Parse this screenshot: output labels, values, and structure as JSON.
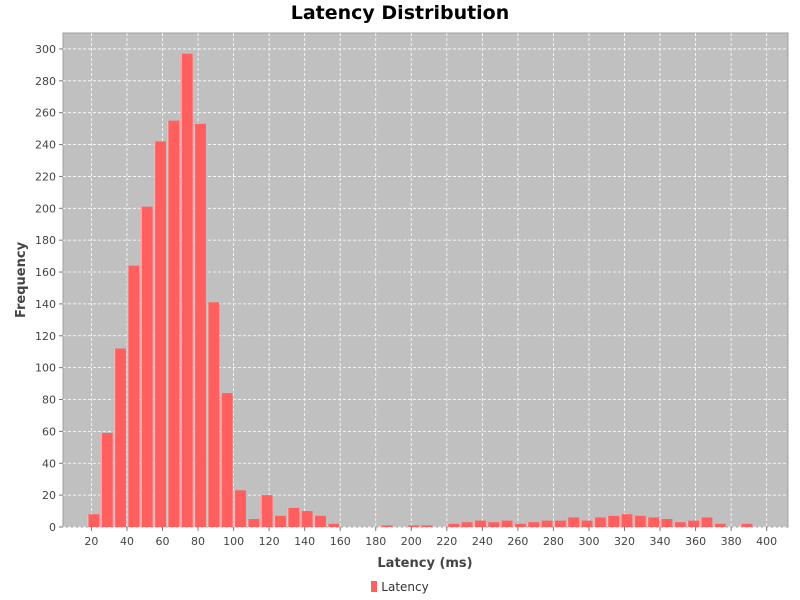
{
  "chart_data": {
    "type": "bar",
    "title": "Latency Distribution",
    "xlabel": "Latency (ms)",
    "ylabel": "Frequency",
    "xlim": [
      4,
      412
    ],
    "ylim": [
      0,
      310
    ],
    "xticks": [
      20,
      40,
      60,
      80,
      100,
      120,
      140,
      160,
      180,
      200,
      220,
      240,
      260,
      280,
      300,
      320,
      340,
      360,
      380,
      400
    ],
    "yticks": [
      0,
      20,
      40,
      60,
      80,
      100,
      120,
      140,
      160,
      180,
      200,
      220,
      240,
      260,
      280,
      300
    ],
    "bin_width": 7.5,
    "bin_starts": [
      17.5,
      25,
      32.5,
      40,
      47.5,
      55,
      62.5,
      70,
      77.5,
      85,
      92.5,
      100,
      107.5,
      115,
      122.5,
      130,
      137.5,
      145,
      152.5,
      160,
      167.5,
      175,
      182.5,
      190,
      197.5,
      205,
      212.5,
      220,
      227.5,
      235,
      242.5,
      250,
      257.5,
      265,
      272.5,
      280,
      287.5,
      295,
      302.5,
      310,
      317.5,
      325,
      332.5,
      340,
      347.5,
      355,
      362.5,
      370,
      377.5,
      385,
      392.5
    ],
    "series": [
      {
        "name": "Latency",
        "values": [
          8,
          59,
          112,
          164,
          201,
          242,
          255,
          297,
          253,
          141,
          84,
          23,
          5,
          20,
          7,
          12,
          10,
          7,
          2,
          0,
          0,
          0,
          1,
          0,
          1,
          1,
          0,
          2,
          3,
          4,
          3,
          4,
          2,
          3,
          4,
          4,
          6,
          4,
          6,
          7,
          8,
          7,
          6,
          5,
          3,
          4,
          6,
          2,
          0,
          2,
          0
        ]
      }
    ],
    "grid": true,
    "legend": "bottom-center",
    "colors": {
      "bar": "#ff5f5f",
      "bar_highlight": "#ffb3b3",
      "plot_background": "#c0c0c0",
      "gridline": "#ffffff"
    }
  }
}
